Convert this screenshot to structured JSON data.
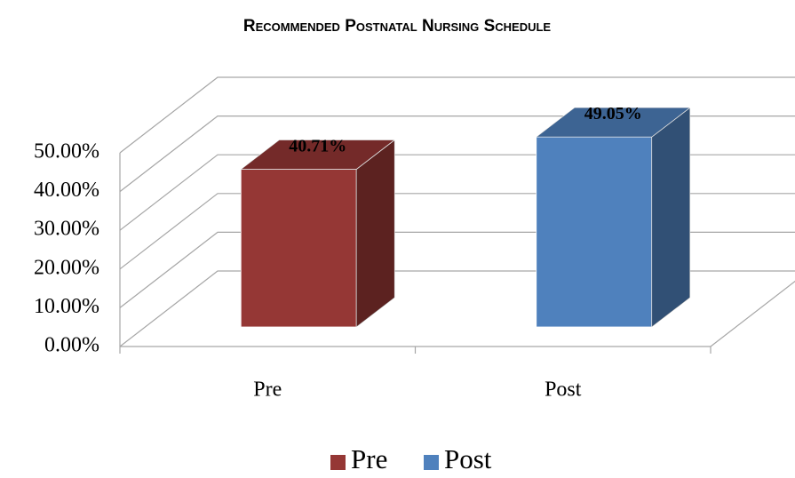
{
  "chart_data": {
    "type": "bar3d",
    "title": "Recommended Postnatal Nursing Schedule",
    "categories": [
      "Pre",
      "Post"
    ],
    "series": [
      {
        "name": "Pre",
        "color": "#953735",
        "values": [
          40.71,
          null
        ],
        "value_labels": [
          "40.71%",
          null
        ]
      },
      {
        "name": "Post",
        "color": "#4f81bd",
        "values": [
          null,
          49.05
        ],
        "value_labels": [
          null,
          "49.05%"
        ]
      }
    ],
    "ylim": [
      0,
      50
    ],
    "yticks": [
      {
        "value": 0,
        "label": "0.00%"
      },
      {
        "value": 10,
        "label": "10.00%"
      },
      {
        "value": 20,
        "label": "20.00%"
      },
      {
        "value": 30,
        "label": "30.00%"
      },
      {
        "value": 40,
        "label": "40.00%"
      },
      {
        "value": 50,
        "label": "50.00%"
      }
    ],
    "grid": true,
    "legend": "bottom"
  }
}
